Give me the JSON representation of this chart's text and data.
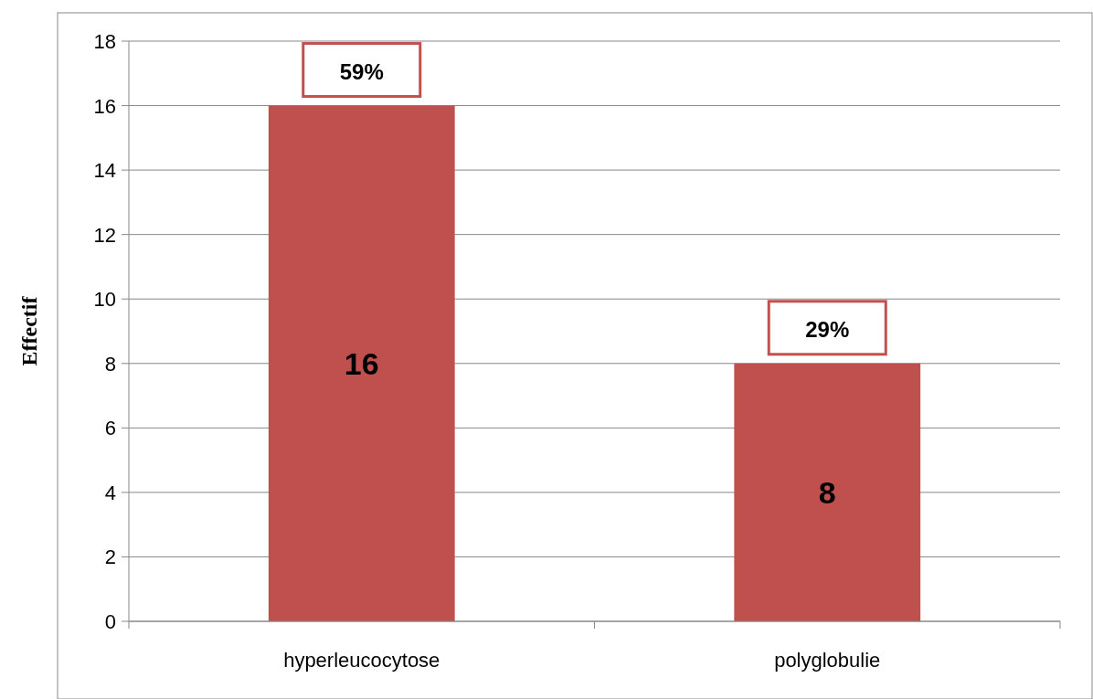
{
  "chart_data": {
    "type": "bar",
    "ylabel": "Effectif",
    "categories": [
      "hyperleucocytose",
      "polyglobulie"
    ],
    "values": [
      16,
      8
    ],
    "color": "#c0504d",
    "ylim": [
      0,
      18
    ],
    "yticks": [
      0,
      2,
      4,
      6,
      8,
      10,
      12,
      14,
      16,
      18
    ],
    "grid": "y",
    "data_labels": true,
    "annotations": [
      {
        "text": "59%",
        "x": "hyperleucocytose",
        "y": 16
      },
      {
        "text": "29%",
        "x": "polyglobulie",
        "y": 8
      }
    ]
  }
}
